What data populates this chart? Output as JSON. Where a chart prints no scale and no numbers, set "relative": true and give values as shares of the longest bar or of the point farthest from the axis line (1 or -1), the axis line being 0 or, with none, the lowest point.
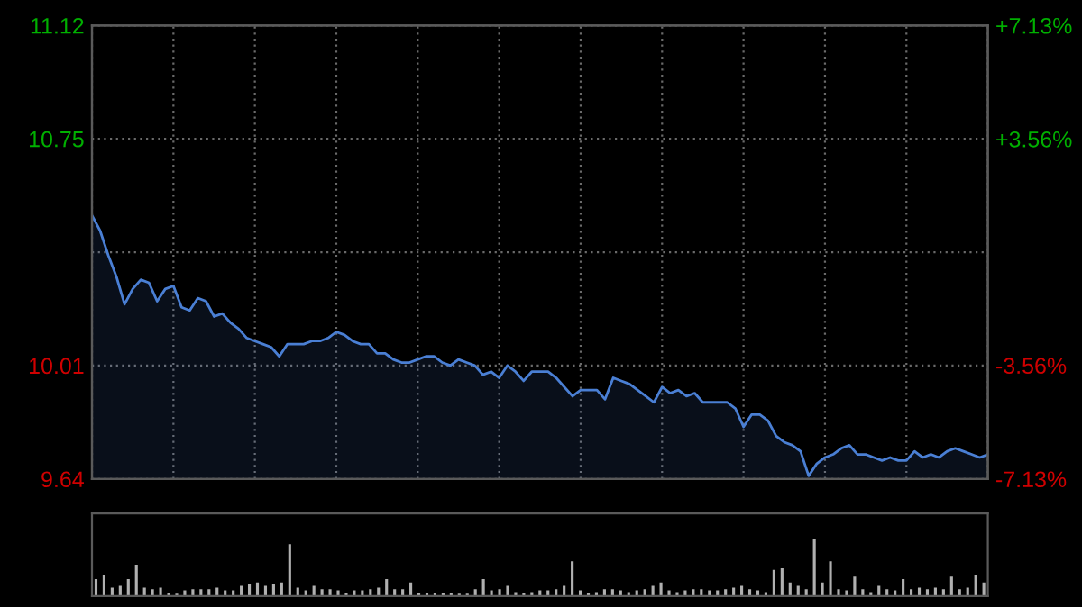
{
  "chart_data": [
    {
      "type": "area",
      "categories": [
        null,
        null,
        null,
        null,
        null,
        null,
        null,
        null,
        null,
        null,
        null,
        null,
        null,
        null,
        null,
        null,
        null,
        null,
        null,
        null,
        null,
        null,
        null,
        null,
        null,
        null,
        null,
        null,
        null,
        null,
        null,
        null,
        null,
        null,
        null,
        null,
        null,
        null,
        null,
        null,
        null,
        null,
        null,
        null,
        null,
        null,
        null,
        null,
        null,
        null,
        null,
        null,
        null,
        null,
        null,
        null,
        null,
        null,
        null,
        null,
        null,
        null,
        null,
        null,
        null,
        null,
        null,
        null,
        null,
        null,
        null,
        null,
        null,
        null,
        null,
        null,
        null,
        null,
        null,
        null,
        null,
        null,
        null,
        null,
        null,
        null,
        null,
        null,
        null,
        null,
        null,
        null,
        null,
        null,
        null,
        null,
        null,
        null,
        null,
        null,
        null,
        null,
        null,
        null,
        null,
        null,
        null,
        null,
        null,
        null,
        null
      ],
      "series": [
        {
          "color": "#4a7fd4",
          "values": [
            10.5,
            10.45,
            10.37,
            10.3,
            10.21,
            10.26,
            10.29,
            10.28,
            10.22,
            10.26,
            10.27,
            10.2,
            10.19,
            10.23,
            10.22,
            10.17,
            10.18,
            10.15,
            10.13,
            10.1,
            10.09,
            10.08,
            10.07,
            10.04,
            10.08,
            10.08,
            10.08,
            10.09,
            10.09,
            10.1,
            10.12,
            10.11,
            10.09,
            10.08,
            10.08,
            10.05,
            10.05,
            10.03,
            10.02,
            10.02,
            10.03,
            10.04,
            10.04,
            10.02,
            10.01,
            10.03,
            10.02,
            10.01,
            9.98,
            9.99,
            9.97,
            10.01,
            9.99,
            9.96,
            9.99,
            9.99,
            9.99,
            9.97,
            9.94,
            9.91,
            9.93,
            9.93,
            9.93,
            9.9,
            9.97,
            9.96,
            9.95,
            9.93,
            9.91,
            9.89,
            9.94,
            9.92,
            9.93,
            9.91,
            9.92,
            9.89,
            9.89,
            9.89,
            9.89,
            9.87,
            9.81,
            9.85,
            9.85,
            9.83,
            9.78,
            9.76,
            9.75,
            9.73,
            9.65,
            9.69,
            9.71,
            9.72,
            9.74,
            9.75,
            9.72,
            9.72,
            9.71,
            9.7,
            9.71,
            9.7,
            9.7,
            9.73,
            9.71,
            9.72,
            9.71,
            9.73,
            9.74,
            9.73,
            9.72,
            9.71,
            9.72
          ]
        }
      ],
      "ylim": [
        9.64,
        11.12
      ],
      "yticks": [
        11.12,
        10.75,
        {
          "value": 10.38,
          "label": null
        },
        10.01,
        9.64
      ],
      "y2lim": [
        -7.13,
        7.13
      ],
      "y2ticks": [
        {
          "value": 7.13,
          "label": "+7.13%"
        },
        {
          "value": 3.56,
          "label": "+3.56%"
        },
        {
          "value": 0,
          "label": null
        },
        {
          "value": -3.56,
          "label": "-3.56%"
        },
        {
          "value": -7.13,
          "label": "-7.13%"
        }
      ],
      "tick_labels": "y",
      "grid": true
    },
    {
      "type": "bar",
      "relative": true,
      "categories": [
        null,
        null,
        null,
        null,
        null,
        null,
        null,
        null,
        null,
        null,
        null,
        null,
        null,
        null,
        null,
        null,
        null,
        null,
        null,
        null,
        null,
        null,
        null,
        null,
        null,
        null,
        null,
        null,
        null,
        null,
        null,
        null,
        null,
        null,
        null,
        null,
        null,
        null,
        null,
        null,
        null,
        null,
        null,
        null,
        null,
        null,
        null,
        null,
        null,
        null,
        null,
        null,
        null,
        null,
        null,
        null,
        null,
        null,
        null,
        null,
        null,
        null,
        null,
        null,
        null,
        null,
        null,
        null,
        null,
        null,
        null,
        null,
        null,
        null,
        null,
        null,
        null,
        null,
        null,
        null,
        null,
        null,
        null,
        null,
        null,
        null,
        null,
        null,
        null,
        null,
        null,
        null,
        null,
        null,
        null,
        null,
        null,
        null,
        null,
        null,
        null,
        null,
        null,
        null,
        null,
        null,
        null,
        null,
        null,
        null,
        null
      ],
      "tick_labels": false,
      "series": [
        {
          "color": "#b0b0b0",
          "values": [
            0.3,
            0.37,
            0.15,
            0.18,
            0.3,
            0.55,
            0.15,
            0.12,
            0.15,
            0.05,
            0.04,
            0.1,
            0.12,
            0.12,
            0.12,
            0.15,
            0.1,
            0.1,
            0.18,
            0.22,
            0.24,
            0.18,
            0.22,
            0.24,
            0.91,
            0.15,
            0.1,
            0.18,
            0.12,
            0.12,
            0.1,
            0.05,
            0.1,
            0.1,
            0.12,
            0.15,
            0.3,
            0.12,
            0.12,
            0.24,
            0.06,
            0.05,
            0.05,
            0.05,
            0.05,
            0.04,
            0.04,
            0.12,
            0.3,
            0.1,
            0.12,
            0.18,
            0.07,
            0.06,
            0.07,
            0.1,
            0.1,
            0.12,
            0.18,
            0.61,
            0.1,
            0.06,
            0.07,
            0.12,
            0.12,
            0.1,
            0.07,
            0.1,
            0.12,
            0.18,
            0.24,
            0.1,
            0.07,
            0.1,
            0.12,
            0.12,
            0.1,
            0.1,
            0.12,
            0.15,
            0.18,
            0.12,
            0.1,
            0.07,
            0.46,
            0.49,
            0.24,
            0.18,
            0.12,
            1.0,
            0.24,
            0.61,
            0.12,
            0.1,
            0.34,
            0.12,
            0.07,
            0.18,
            0.12,
            0.1,
            0.3,
            0.12,
            0.15,
            0.12,
            0.15,
            0.12,
            0.34,
            0.12,
            0.15,
            0.37,
            0.24
          ]
        }
      ]
    }
  ]
}
